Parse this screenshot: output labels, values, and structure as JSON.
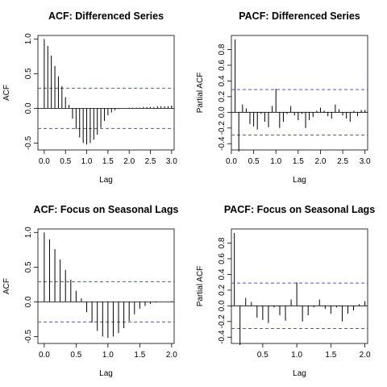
{
  "chart_data": [
    {
      "type": "bar",
      "title": "ACF: Differenced Series",
      "xlabel": "Lag",
      "ylabel": "ACF",
      "xlim": [
        -0.15,
        3.06
      ],
      "ylim": [
        -0.6,
        1.05
      ],
      "xticks": [
        0.0,
        0.5,
        1.0,
        1.5,
        2.0,
        2.5,
        3.0
      ],
      "xticklabels": [
        "0.0",
        "0.5",
        "1.0",
        "1.5",
        "2.0",
        "2.5",
        "3.0"
      ],
      "yticks": [
        -0.5,
        0.0,
        0.5,
        1.0
      ],
      "yticklabels": [
        "-0.5",
        "0.0",
        "0.5",
        "1.0"
      ],
      "conf_band": 0.29,
      "lag_step": 0.0833,
      "x": [
        0.0,
        0.0833,
        0.1667,
        0.25,
        0.3333,
        0.4167,
        0.5,
        0.5833,
        0.6667,
        0.75,
        0.8333,
        0.9167,
        1.0,
        1.0833,
        1.1667,
        1.25,
        1.3333,
        1.4167,
        1.5,
        1.5833,
        1.6667,
        1.75,
        1.8333,
        1.9167,
        2.0,
        2.0833,
        2.1667,
        2.25,
        2.3333,
        2.4167,
        2.5,
        2.5833,
        2.6667,
        2.75,
        2.8333,
        2.9167,
        3.0
      ],
      "values": [
        1.0,
        0.9,
        0.76,
        0.61,
        0.46,
        0.32,
        0.16,
        0.05,
        -0.15,
        -0.3,
        -0.42,
        -0.5,
        -0.52,
        -0.5,
        -0.45,
        -0.38,
        -0.28,
        -0.18,
        -0.1,
        -0.06,
        -0.03,
        -0.01,
        0.0,
        0.0,
        0.01,
        0.01,
        0.01,
        0.01,
        0.02,
        0.02,
        0.02,
        0.02,
        0.03,
        0.03,
        0.03,
        0.03,
        0.04
      ],
      "grid": false
    },
    {
      "type": "bar",
      "title": "PACF: Differenced Series",
      "xlabel": "Lag",
      "ylabel": "Partial ACF",
      "xlim": [
        0.0,
        3.06
      ],
      "ylim": [
        -0.48,
        0.98
      ],
      "xticks": [
        0.0,
        0.5,
        1.0,
        1.5,
        2.0,
        2.5,
        3.0
      ],
      "xticklabels": [
        "0.0",
        "0.5",
        "1.0",
        "1.5",
        "2.0",
        "2.5",
        "3.0"
      ],
      "yticks": [
        -0.4,
        -0.2,
        0.0,
        0.2,
        0.4,
        0.6,
        0.8
      ],
      "yticklabels": [
        "-0.4",
        "-0.2",
        "0.0",
        "0.2",
        "0.4",
        "0.6",
        "0.8"
      ],
      "conf_band": 0.29,
      "lag_step": 0.0833,
      "x": [
        0.0833,
        0.1667,
        0.25,
        0.3333,
        0.4167,
        0.5,
        0.5833,
        0.6667,
        0.75,
        0.8333,
        0.9167,
        1.0,
        1.0833,
        1.1667,
        1.25,
        1.3333,
        1.4167,
        1.5,
        1.5833,
        1.6667,
        1.75,
        1.8333,
        1.9167,
        2.0,
        2.0833,
        2.1667,
        2.25,
        2.3333,
        2.4167,
        2.5,
        2.5833,
        2.6667,
        2.75,
        2.8333,
        2.9167,
        3.0
      ],
      "values": [
        0.93,
        -0.5,
        0.1,
        0.05,
        -0.15,
        -0.18,
        -0.22,
        -0.02,
        -0.12,
        -0.19,
        0.08,
        0.3,
        -0.2,
        -0.12,
        -0.02,
        0.08,
        -0.04,
        -0.1,
        -0.02,
        -0.2,
        -0.1,
        -0.06,
        0.02,
        0.06,
        0.02,
        -0.05,
        -0.08,
        0.1,
        0.04,
        -0.04,
        -0.08,
        -0.12,
        0.02,
        -0.05,
        0.03,
        0.03
      ],
      "grid": false
    },
    {
      "type": "bar",
      "title": "ACF: Focus on Seasonal Lags",
      "xlabel": "Lag",
      "ylabel": "ACF",
      "xlim": [
        -0.1,
        2.04
      ],
      "ylim": [
        -0.6,
        1.05
      ],
      "xticks": [
        0.0,
        0.5,
        1.0,
        1.5,
        2.0
      ],
      "xticklabels": [
        "0.0",
        "0.5",
        "1.0",
        "1.5",
        "2.0"
      ],
      "yticks": [
        -0.5,
        0.0,
        0.5,
        1.0
      ],
      "yticklabels": [
        "-0.5",
        "0.0",
        "0.5",
        "1.0"
      ],
      "conf_band": 0.29,
      "lag_step": 0.0833,
      "x": [
        0.0,
        0.0833,
        0.1667,
        0.25,
        0.3333,
        0.4167,
        0.5,
        0.5833,
        0.6667,
        0.75,
        0.8333,
        0.9167,
        1.0,
        1.0833,
        1.1667,
        1.25,
        1.3333,
        1.4167,
        1.5,
        1.5833,
        1.6667,
        1.75,
        1.8333,
        1.9167,
        2.0
      ],
      "values": [
        1.0,
        0.9,
        0.76,
        0.61,
        0.46,
        0.32,
        0.16,
        0.05,
        -0.15,
        -0.3,
        -0.42,
        -0.5,
        -0.52,
        -0.5,
        -0.45,
        -0.38,
        -0.28,
        -0.18,
        -0.1,
        -0.06,
        -0.03,
        -0.01,
        0.0,
        0.0,
        0.01
      ],
      "grid": false
    },
    {
      "type": "bar",
      "title": "PACF: Focus on Seasonal Lags",
      "xlabel": "Lag",
      "ylabel": "Partial ACF",
      "xlim": [
        0.04,
        2.04
      ],
      "ylim": [
        -0.48,
        0.98
      ],
      "xticks": [
        0.5,
        1.0,
        1.5,
        2.0
      ],
      "xticklabels": [
        "0.5",
        "1.0",
        "1.5",
        "2.0"
      ],
      "yticks": [
        -0.4,
        -0.2,
        0.0,
        0.2,
        0.4,
        0.6,
        0.8
      ],
      "yticklabels": [
        "-0.4",
        "-0.2",
        "0.0",
        "0.2",
        "0.4",
        "0.6",
        "0.8"
      ],
      "conf_band": 0.29,
      "lag_step": 0.0833,
      "x": [
        0.0833,
        0.1667,
        0.25,
        0.3333,
        0.4167,
        0.5,
        0.5833,
        0.6667,
        0.75,
        0.8333,
        0.9167,
        1.0,
        1.0833,
        1.1667,
        1.25,
        1.3333,
        1.4167,
        1.5,
        1.5833,
        1.6667,
        1.75,
        1.8333,
        1.9167,
        2.0
      ],
      "values": [
        0.93,
        -0.5,
        0.1,
        0.05,
        -0.15,
        -0.18,
        -0.22,
        -0.02,
        -0.12,
        -0.19,
        0.08,
        0.3,
        -0.2,
        -0.12,
        -0.02,
        0.08,
        -0.04,
        -0.1,
        -0.02,
        -0.2,
        -0.1,
        -0.06,
        0.02,
        0.06
      ],
      "grid": false
    }
  ],
  "colors": {
    "conf_band": "#4f4fe0",
    "bar": "#000000",
    "zero_line": "#000000"
  }
}
